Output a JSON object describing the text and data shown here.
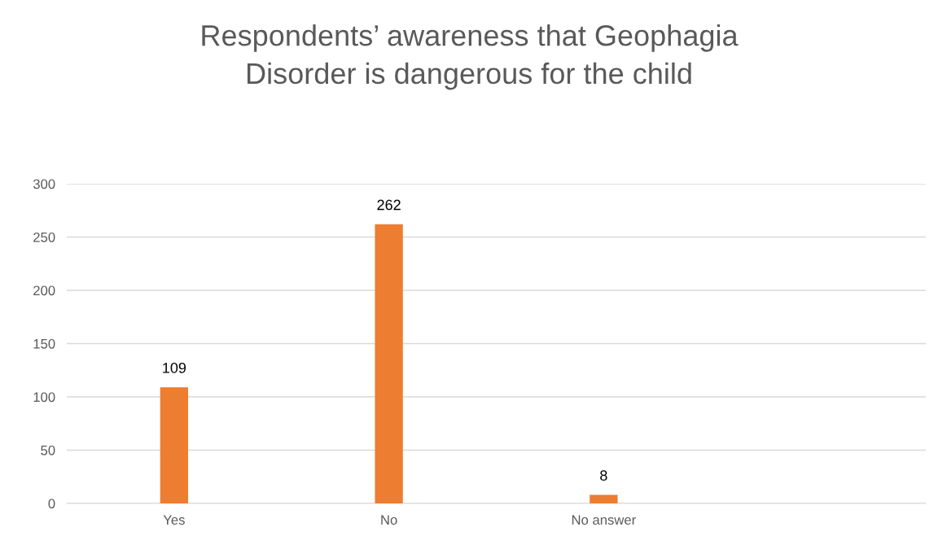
{
  "chart_data": {
    "type": "bar",
    "title": "Respondents’ awareness that Geophagia\nDisorder is dangerous for the child",
    "categories": [
      "Yes",
      "No",
      "No answer",
      null
    ],
    "values": [
      109,
      262,
      8,
      null
    ],
    "color": "#ed7d31",
    "ylim": [
      0,
      300
    ],
    "yticks": [
      0,
      50,
      100,
      150,
      200,
      250,
      300
    ],
    "grid": "y",
    "data_labels": true
  }
}
